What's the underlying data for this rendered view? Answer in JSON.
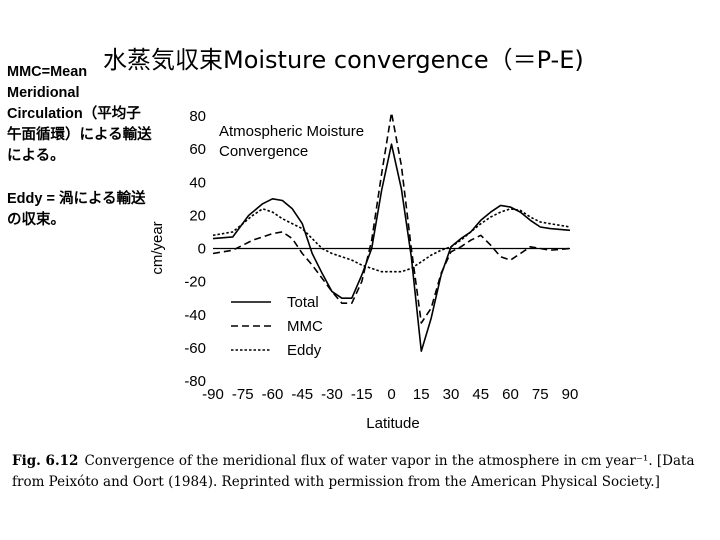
{
  "slide": {
    "title": "水蒸気収束Moisture convergence（＝P-E)",
    "note_mmc": "MMC=Mean\nMeridional\nCirculation（平均子\n午面循環）による輸送\nによる。",
    "note_eddy": "Eddy = 渦による輸送\nの収束。"
  },
  "caption": {
    "fig_label": "Fig. 6.12",
    "text": "Convergence of the meridional flux of water vapor in the atmosphere in cm year⁻¹. [Data from Peixóto and Oort (1984). Reprinted with permission from the American Physical Society.]"
  },
  "chart_data": {
    "type": "line",
    "title": "Atmospheric Moisture Convergence",
    "xlabel": "Latitude",
    "ylabel": "cm/year",
    "xlim": [
      -90,
      90
    ],
    "ylim": [
      -80,
      80
    ],
    "xticks": [
      "-90",
      "-75",
      "-60",
      "-45",
      "-30",
      "-15",
      "0",
      "15",
      "30",
      "45",
      "60",
      "75",
      "90"
    ],
    "yticks": [
      "80",
      "60",
      "40",
      "20",
      "0",
      "-20",
      "-40",
      "-60",
      "-80"
    ],
    "zero_line": true,
    "grid": false,
    "legend_position": "bottom-left",
    "series": [
      {
        "name": "Total",
        "style": "solid",
        "x": [
          -90,
          -80,
          -72,
          -65,
          -60,
          -55,
          -50,
          -45,
          -40,
          -35,
          -30,
          -25,
          -20,
          -15,
          -10,
          -5,
          0,
          5,
          10,
          15,
          20,
          25,
          30,
          35,
          40,
          45,
          50,
          55,
          60,
          65,
          70,
          75,
          80,
          90
        ],
        "y": [
          6,
          7,
          20,
          27,
          30,
          29,
          24,
          15,
          -3,
          -15,
          -26,
          -30,
          -30,
          -16,
          0,
          35,
          63,
          36,
          -5,
          -62,
          -42,
          -16,
          1,
          6,
          10,
          17,
          22,
          26,
          25,
          22,
          17,
          13,
          12,
          11
        ]
      },
      {
        "name": "MMC",
        "style": "dashed",
        "x": [
          -90,
          -80,
          -75,
          -70,
          -65,
          -60,
          -55,
          -50,
          -45,
          -40,
          -35,
          -30,
          -25,
          -20,
          -15,
          -10,
          -5,
          0,
          5,
          10,
          15,
          20,
          25,
          30,
          35,
          40,
          45,
          50,
          55,
          60,
          65,
          70,
          75,
          80,
          90
        ],
        "y": [
          -3,
          -1,
          2,
          5,
          7,
          9,
          10,
          6,
          -3,
          -10,
          -18,
          -26,
          -33,
          -33,
          -20,
          5,
          45,
          82,
          50,
          0,
          -45,
          -36,
          -15,
          -2,
          1,
          5,
          8,
          2,
          -5,
          -7,
          -3,
          1,
          0,
          -1,
          0
        ]
      },
      {
        "name": "Eddy",
        "style": "dotted",
        "x": [
          -90,
          -80,
          -75,
          -70,
          -65,
          -60,
          -55,
          -50,
          -45,
          -40,
          -35,
          -30,
          -25,
          -20,
          -15,
          -10,
          -5,
          0,
          5,
          10,
          15,
          20,
          25,
          30,
          35,
          40,
          45,
          50,
          55,
          60,
          65,
          70,
          75,
          80,
          90
        ],
        "y": [
          8,
          10,
          15,
          20,
          24,
          22,
          18,
          15,
          12,
          6,
          0,
          -3,
          -5,
          -7,
          -10,
          -12,
          -14,
          -14,
          -14,
          -12,
          -8,
          -4,
          -1,
          1,
          5,
          10,
          15,
          19,
          22,
          24,
          23,
          19,
          16,
          15,
          13
        ]
      }
    ]
  }
}
